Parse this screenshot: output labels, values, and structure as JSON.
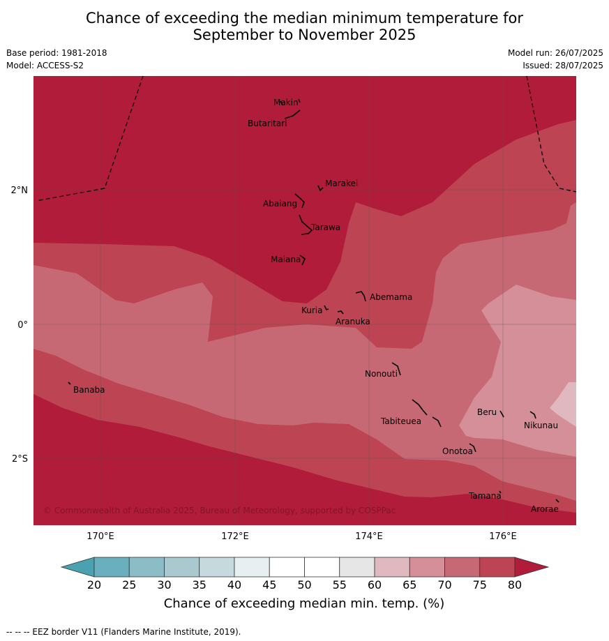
{
  "title": {
    "line1": "Chance of exceeding the median minimum temperature for",
    "line2": "September to November 2025"
  },
  "meta": {
    "base_period": "Base period: 1981-2018",
    "model": "Model: ACCESS-S2",
    "model_run": "Model run: 26/07/2025",
    "issued": "Issued: 28/07/2025"
  },
  "map": {
    "lat_labels": [
      "2°N",
      "0°",
      "2°S"
    ],
    "lon_labels": [
      "170°E",
      "172°E",
      "174°E",
      "176°E"
    ],
    "copyright": "© Commonwealth of Australia 2025, Bureau of Meteorology, supported by COSPPac",
    "places": [
      "Makin",
      "Butaritari",
      "Marakei",
      "Abaiang",
      "Tarawa",
      "Maiana",
      "Abemama",
      "Kuria",
      "Aranuka",
      "Nonouti",
      "Banaba",
      "Beru",
      "Nikunau",
      "Tabiteuea",
      "Onotoa",
      "Tamana",
      "Arorae"
    ]
  },
  "colorbar": {
    "label": "Chance of exceeding median min. temp. (%)",
    "ticks": [
      "20",
      "25",
      "30",
      "35",
      "40",
      "45",
      "50",
      "55",
      "60",
      "65",
      "70",
      "75",
      "80"
    ],
    "colors": {
      "below20": "#4aa1b0",
      "20-25": "#6aafbe",
      "25-30": "#8cbdc7",
      "30-35": "#a9c9cf",
      "35-40": "#c6d9dc",
      "40-45": "#e7eff1",
      "45-50": "#ffffff",
      "50-55": "#ffffff",
      "55-60": "#e6e6e6",
      "60-65": "#e0b9c0",
      "65-70": "#d48f99",
      "70-75": "#c76975",
      "75-80": "#bd4452",
      "above80": "#b01c3a"
    }
  },
  "footer": "--  --  -- EEZ border V11 (Flanders Marine Institute, 2019)."
}
